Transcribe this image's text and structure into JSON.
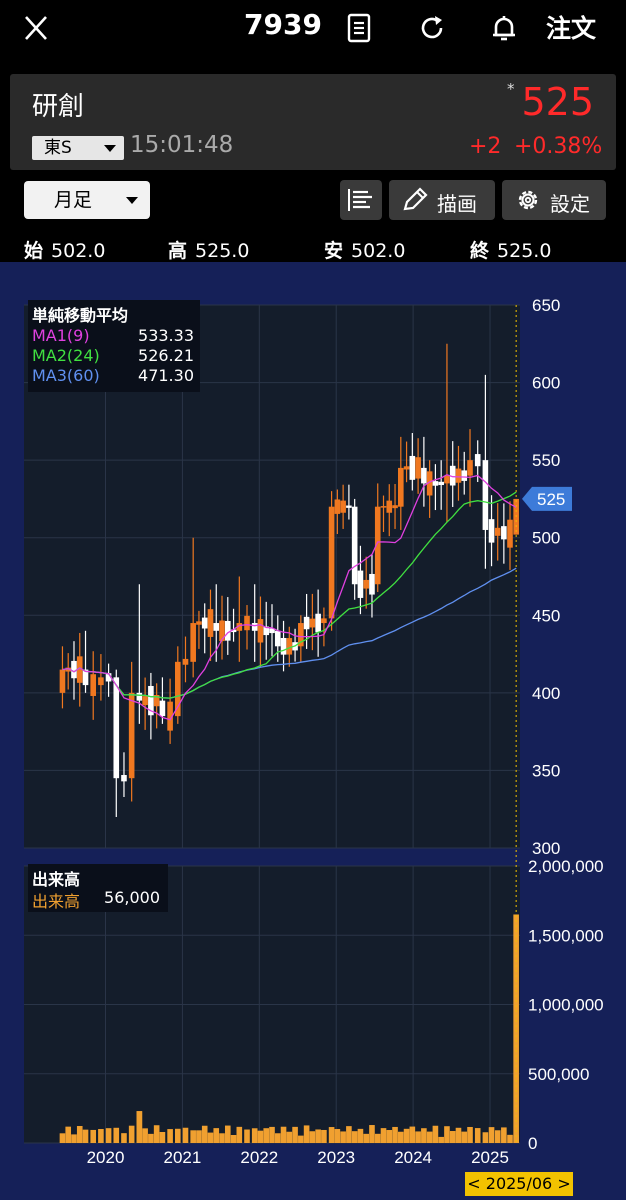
{
  "header": {
    "code": "7939",
    "order_label": "注文"
  },
  "quote": {
    "name": "研創",
    "marker": "*",
    "price": "525",
    "market": "東S",
    "time": "15:01:48",
    "change": "+2",
    "change_pct": "+0.38%"
  },
  "controls": {
    "period": "月足",
    "draw_label": "描画",
    "settings_label": "設定"
  },
  "ohlc": {
    "open_label": "始",
    "open": "502.0",
    "high_label": "高",
    "high": "525.0",
    "low_label": "安",
    "low": "502.0",
    "close_label": "終",
    "close": "525.0"
  },
  "ma_legend": {
    "title": "単純移動平均",
    "items": [
      {
        "label": "MA1(9)",
        "value": "533.33",
        "color": "#e040e0"
      },
      {
        "label": "MA2(24)",
        "value": "526.21",
        "color": "#40e040"
      },
      {
        "label": "MA3(60)",
        "value": "471.30",
        "color": "#6090f0"
      }
    ]
  },
  "volume_legend": {
    "title": "出来高",
    "label": "出来高",
    "value": "56,000"
  },
  "cursor_date": "< 2025/06 >",
  "chart_data": [
    {
      "type": "candlestick",
      "title": "",
      "interval": "monthly",
      "x_ticks": [
        "2020",
        "2021",
        "2022",
        "2023",
        "2024",
        "2025"
      ],
      "y_ticks": [
        300,
        350,
        400,
        450,
        500,
        550,
        600,
        650
      ],
      "ylim": [
        300,
        650
      ],
      "last_price_marker": 525,
      "candles_approx": [
        [
          2019.5,
          400,
          430,
          390,
          415
        ],
        [
          2019.8,
          415,
          440,
          400,
          405
        ],
        [
          2020.0,
          405,
          425,
          395,
          410
        ],
        [
          2020.2,
          410,
          415,
          320,
          345
        ],
        [
          2020.4,
          345,
          420,
          330,
          400
        ],
        [
          2020.5,
          400,
          470,
          380,
          395
        ],
        [
          2020.8,
          395,
          410,
          380,
          385
        ],
        [
          2021.0,
          385,
          430,
          380,
          420
        ],
        [
          2021.2,
          420,
          500,
          410,
          445
        ],
        [
          2021.5,
          445,
          470,
          420,
          440
        ],
        [
          2021.8,
          440,
          475,
          420,
          445
        ],
        [
          2022.0,
          445,
          470,
          420,
          440
        ],
        [
          2022.3,
          440,
          450,
          420,
          430
        ],
        [
          2022.6,
          430,
          450,
          420,
          445
        ],
        [
          2022.9,
          445,
          455,
          430,
          448
        ],
        [
          2023.0,
          448,
          530,
          440,
          520
        ],
        [
          2023.3,
          520,
          525,
          460,
          470
        ],
        [
          2023.6,
          470,
          535,
          465,
          520
        ],
        [
          2023.9,
          520,
          565,
          505,
          545
        ],
        [
          2024.2,
          545,
          565,
          520,
          535
        ],
        [
          2024.5,
          535,
          625,
          510,
          540
        ],
        [
          2024.8,
          540,
          570,
          520,
          550
        ],
        [
          2025.0,
          550,
          605,
          480,
          505
        ],
        [
          2025.4,
          502,
          525,
          502,
          525
        ]
      ],
      "series": [
        {
          "name": "MA1(9)",
          "last": 533.33,
          "color": "#e040e0"
        },
        {
          "name": "MA2(24)",
          "last": 526.21,
          "color": "#40e040"
        },
        {
          "name": "MA3(60)",
          "last": 471.3,
          "color": "#6090f0"
        }
      ]
    },
    {
      "type": "bar",
      "title": "出来高",
      "y_ticks": [
        "0",
        "500,000",
        "1,000,000",
        "1,500,000",
        "2,000,000"
      ],
      "ylim": [
        0,
        2000000
      ],
      "notable": [
        {
          "x": "2020.5",
          "value": 230000
        },
        {
          "x": "2025.4",
          "value": 1650000
        }
      ],
      "last_value": 56000
    }
  ]
}
